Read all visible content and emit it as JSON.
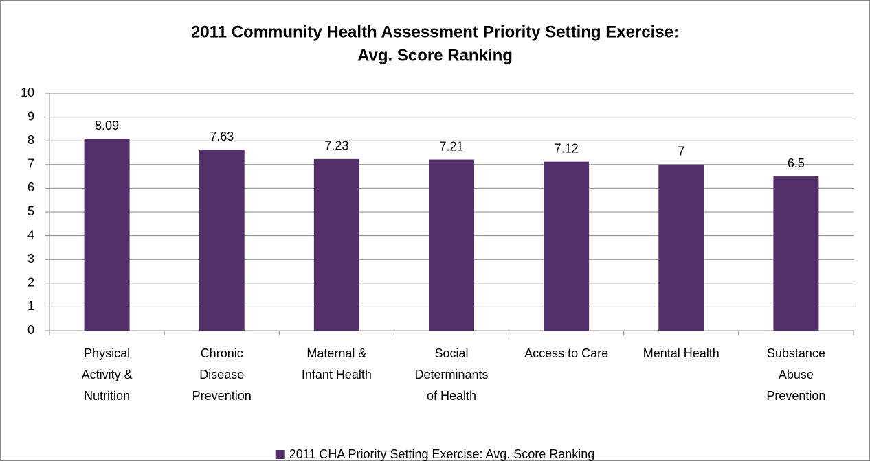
{
  "chart_data": {
    "type": "bar",
    "title": [
      "2011 Community Health Assessment Priority Setting Exercise:",
      "Avg. Score Ranking"
    ],
    "categories": [
      [
        "Physical",
        "Activity &",
        "Nutrition"
      ],
      [
        "Chronic",
        "Disease",
        "Prevention"
      ],
      [
        "Maternal &",
        "Infant Health"
      ],
      [
        "Social",
        "Determinants",
        "of Health"
      ],
      [
        "Access to Care"
      ],
      [
        "Mental Health"
      ],
      [
        "Substance",
        "Abuse",
        "Prevention"
      ]
    ],
    "series": [
      {
        "name": "2011 CHA Priority Setting Exercise: Avg. Score Ranking",
        "color": "#54306a",
        "values": [
          8.09,
          7.63,
          7.23,
          7.21,
          7.12,
          7,
          6.5
        ]
      }
    ],
    "ylim": [
      0,
      10
    ],
    "yticks": [
      0,
      1,
      2,
      3,
      4,
      5,
      6,
      7,
      8,
      9,
      10
    ],
    "grid": true,
    "legend": "bottom"
  }
}
